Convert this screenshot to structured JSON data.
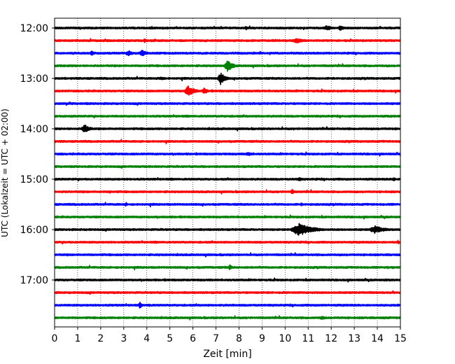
{
  "chart_data": {
    "type": "line",
    "xlabel": "Zeit  [min]",
    "ylabel": "UTC (Lokalzeit = UTC + 02:00)",
    "xlim": [
      0,
      15
    ],
    "x_ticks": [
      0,
      1,
      2,
      3,
      4,
      5,
      6,
      7,
      8,
      9,
      10,
      11,
      12,
      13,
      14,
      15
    ],
    "y_tick_labels": [
      "12:00",
      "13:00",
      "14:00",
      "15:00",
      "16:00",
      "17:00"
    ],
    "grid": "vertical dotted at each minute",
    "trace_interval_minutes": 15,
    "start_time": "12:00",
    "trace_colors": [
      "#000000",
      "#ff0000",
      "#0000ff",
      "#008000"
    ],
    "series": [
      {
        "start": "12:00",
        "color": "#000000",
        "events": [
          {
            "t": 8.3,
            "amp": 0.35,
            "dur": 0.2
          },
          {
            "t": 11.8,
            "amp": 0.45,
            "dur": 0.5
          },
          {
            "t": 12.4,
            "amp": 0.4,
            "dur": 0.5
          }
        ]
      },
      {
        "start": "12:15",
        "color": "#ff0000",
        "events": [
          {
            "t": 3.9,
            "amp": 0.5,
            "dur": 0.15
          },
          {
            "t": 10.5,
            "amp": 0.4,
            "dur": 0.8
          }
        ]
      },
      {
        "start": "12:30",
        "color": "#0000ff",
        "events": [
          {
            "t": 1.6,
            "amp": 0.5,
            "dur": 0.25
          },
          {
            "t": 3.2,
            "amp": 0.45,
            "dur": 0.5
          },
          {
            "t": 3.8,
            "amp": 0.5,
            "dur": 0.5
          }
        ]
      },
      {
        "start": "12:45",
        "color": "#008000",
        "events": [
          {
            "t": 7.5,
            "amp": 0.95,
            "dur": 0.5
          }
        ]
      },
      {
        "start": "13:00",
        "color": "#000000",
        "events": [
          {
            "t": 4.6,
            "amp": 0.3,
            "dur": 0.5
          },
          {
            "t": 7.2,
            "amp": 1.0,
            "dur": 0.45
          }
        ]
      },
      {
        "start": "13:15",
        "color": "#ff0000",
        "events": [
          {
            "t": 5.8,
            "amp": 0.85,
            "dur": 0.6
          },
          {
            "t": 6.5,
            "amp": 0.5,
            "dur": 0.4
          }
        ]
      },
      {
        "start": "13:30",
        "color": "#0000ff",
        "events": []
      },
      {
        "start": "13:45",
        "color": "#008000",
        "events": []
      },
      {
        "start": "14:00",
        "color": "#000000",
        "events": [
          {
            "t": 1.3,
            "amp": 0.75,
            "dur": 0.5
          }
        ]
      },
      {
        "start": "14:15",
        "color": "#ff0000",
        "events": []
      },
      {
        "start": "14:30",
        "color": "#0000ff",
        "events": [
          {
            "t": 8.4,
            "amp": 0.3,
            "dur": 0.6
          }
        ]
      },
      {
        "start": "14:45",
        "color": "#008000",
        "events": []
      },
      {
        "start": "15:00",
        "color": "#000000",
        "events": [
          {
            "t": 10.6,
            "amp": 0.35,
            "dur": 0.3
          },
          {
            "t": 14.7,
            "amp": 0.4,
            "dur": 0.2
          }
        ]
      },
      {
        "start": "15:15",
        "color": "#ff0000",
        "events": [
          {
            "t": 2.4,
            "amp": 0.3,
            "dur": 0.15
          },
          {
            "t": 10.3,
            "amp": 0.45,
            "dur": 0.2
          }
        ]
      },
      {
        "start": "15:30",
        "color": "#0000ff",
        "events": [
          {
            "t": 3.1,
            "amp": 0.35,
            "dur": 0.2
          },
          {
            "t": 10.7,
            "amp": 0.3,
            "dur": 0.2
          }
        ]
      },
      {
        "start": "15:45",
        "color": "#008000",
        "events": []
      },
      {
        "start": "16:00",
        "color": "#000000",
        "events": [
          {
            "t": 10.6,
            "amp": 1.0,
            "dur": 1.3
          },
          {
            "t": 13.9,
            "amp": 0.65,
            "dur": 0.9
          }
        ]
      },
      {
        "start": "16:15",
        "color": "#ff0000",
        "events": [
          {
            "t": 14.9,
            "amp": 0.4,
            "dur": 0.15
          }
        ]
      },
      {
        "start": "16:30",
        "color": "#0000ff",
        "events": []
      },
      {
        "start": "16:45",
        "color": "#008000",
        "events": [
          {
            "t": 7.6,
            "amp": 0.45,
            "dur": 0.25
          }
        ]
      },
      {
        "start": "17:00",
        "color": "#000000",
        "events": []
      },
      {
        "start": "17:15",
        "color": "#ff0000",
        "events": []
      },
      {
        "start": "17:30",
        "color": "#0000ff",
        "events": [
          {
            "t": 3.7,
            "amp": 0.55,
            "dur": 0.2
          },
          {
            "t": 4.1,
            "amp": 0.3,
            "dur": 0.2
          }
        ]
      },
      {
        "start": "17:45",
        "color": "#008000",
        "events": [
          {
            "t": 11.6,
            "amp": 0.3,
            "dur": 0.5
          }
        ]
      }
    ]
  }
}
